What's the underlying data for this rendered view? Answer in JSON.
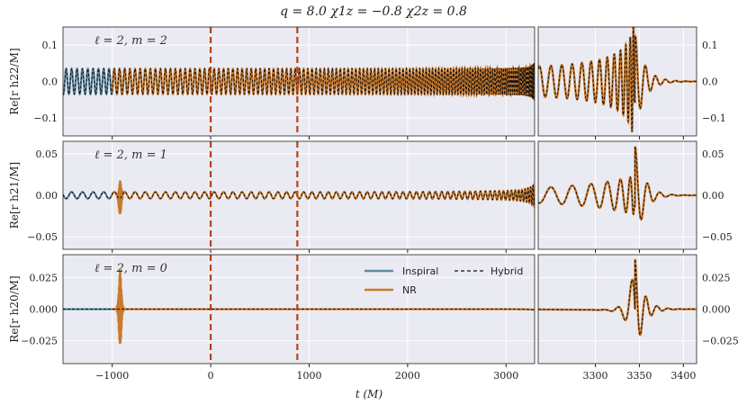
{
  "title": "q = 8.0 χ1z = −0.8 χ2z = 0.8",
  "xlabel": "t (M)",
  "colors": {
    "inspiral": "#5f8aa1",
    "nr": "#c97a2c",
    "hybrid": "#111111",
    "vline": "#b4441c",
    "panel_bg": "#eaeaf2",
    "grid": "#ffffff"
  },
  "legend": {
    "inspiral": "Inspiral",
    "nr": "NR",
    "hybrid": "Hybrid"
  },
  "chart_data": {
    "type": "line",
    "vlines": [
      0,
      880
    ],
    "x_ticks_main": [
      "−1000",
      "0",
      "1000",
      "2000",
      "3000"
    ],
    "x_ticks_zoom": [
      "3300",
      "3350",
      "3400"
    ],
    "xlim_main": [
      -1500,
      3290
    ],
    "xlim_zoom": [
      3235,
      3415
    ],
    "panels": [
      {
        "mode": "22",
        "label": "ℓ = 2, m = 2",
        "ylabel": "Re[r h22/M]",
        "ylim": [
          -0.15,
          0.15
        ],
        "yticks": [
          "0.1",
          "0.0",
          "−0.1"
        ],
        "amplitude": 0.04,
        "series": [
          "Inspiral",
          "NR",
          "Hybrid"
        ]
      },
      {
        "mode": "21",
        "label": "ℓ = 2, m = 1",
        "ylabel": "Re[r h21/M]",
        "ylim": [
          -0.065,
          0.065
        ],
        "yticks": [
          "0.05",
          "0.00",
          "−0.05"
        ],
        "amplitude": 0.005,
        "series": [
          "Inspiral",
          "NR",
          "Hybrid"
        ]
      },
      {
        "mode": "20",
        "label": "ℓ = 2, m = 0",
        "ylabel": "Re[r h20/M]",
        "ylim": [
          -0.043,
          0.043
        ],
        "yticks": [
          "0.025",
          "0.000",
          "−0.025"
        ],
        "amplitude": 0.04,
        "series": [
          "Inspiral",
          "NR",
          "Hybrid"
        ]
      }
    ]
  }
}
